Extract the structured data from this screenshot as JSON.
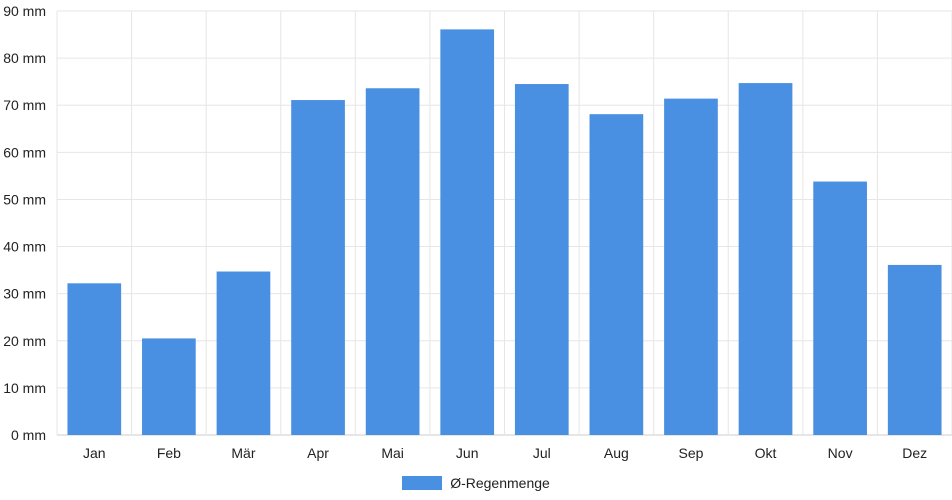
{
  "chart_data": {
    "type": "bar",
    "categories": [
      "Jan",
      "Feb",
      "Mär",
      "Apr",
      "Mai",
      "Jun",
      "Jul",
      "Aug",
      "Sep",
      "Okt",
      "Nov",
      "Dez"
    ],
    "series": [
      {
        "name": "Ø-Regenmenge",
        "values": [
          32.2,
          20.5,
          34.7,
          71.1,
          73.6,
          86.1,
          74.5,
          68.1,
          71.4,
          74.7,
          53.8,
          36.1
        ],
        "color": "#4a90e2"
      }
    ],
    "yticks": [
      "0 mm",
      "10 mm",
      "20 mm",
      "30 mm",
      "40 mm",
      "50 mm",
      "60 mm",
      "70 mm",
      "80 mm",
      "90 mm"
    ],
    "ylim": [
      0,
      90
    ],
    "grid": true,
    "legend_position": "bottom"
  }
}
